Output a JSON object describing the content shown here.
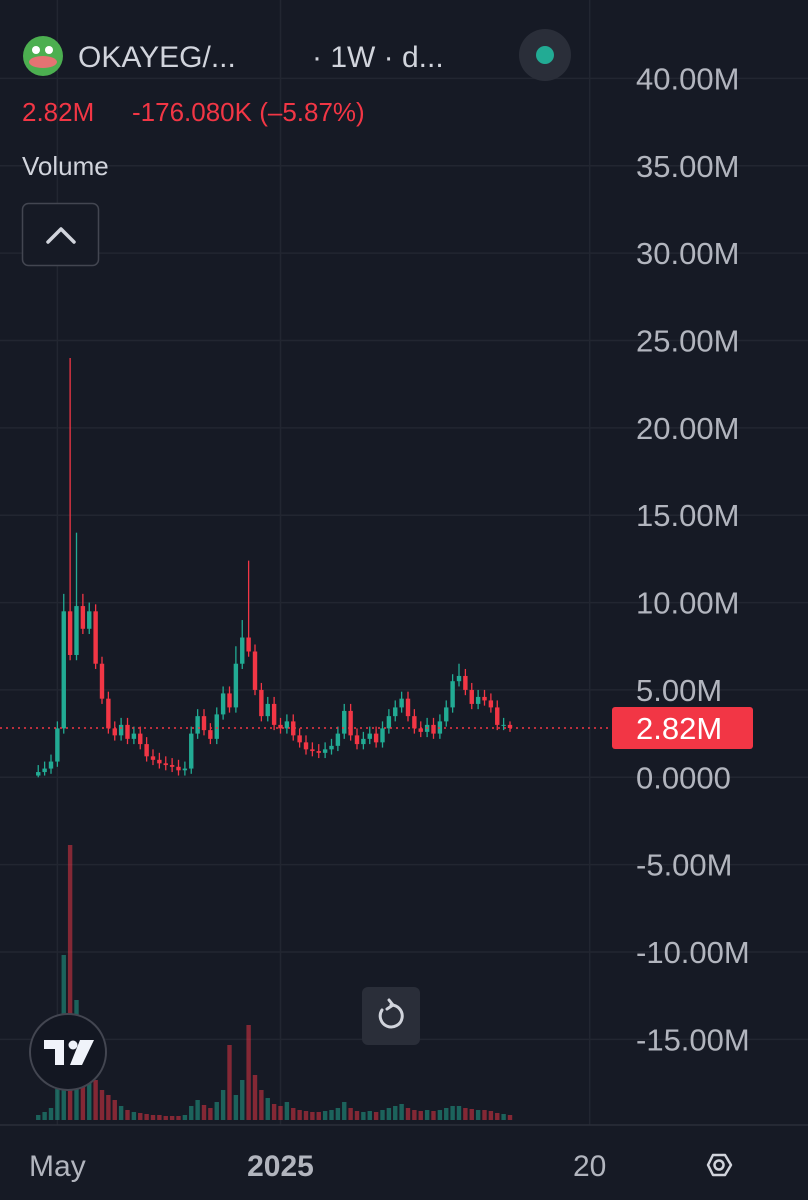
{
  "chart_data": {
    "type": "candlestick",
    "title": "OKAYEG/...",
    "interval": "· 1W · d...",
    "last_price_text": "2.82M",
    "change": "-176.080K (–5.87%)",
    "volume_label": "Volume",
    "up_color": "#22ab94",
    "down_color": "#f23645",
    "grid": true,
    "ylim": [
      -19.9,
      43.8
    ],
    "yticks": [
      {
        "value": 40,
        "label": "40.00M"
      },
      {
        "value": 35,
        "label": "35.00M"
      },
      {
        "value": 30,
        "label": "30.00M"
      },
      {
        "value": 25,
        "label": "25.00M"
      },
      {
        "value": 20,
        "label": "20.00M"
      },
      {
        "value": 15,
        "label": "15.00M"
      },
      {
        "value": 10,
        "label": "10.00M"
      },
      {
        "value": 5,
        "label": "5.00M"
      },
      {
        "value": 0,
        "label": "0.0000"
      },
      {
        "value": -5,
        "label": "-5.00M"
      },
      {
        "value": -10,
        "label": "-10.00M"
      },
      {
        "value": -15,
        "label": "-15.00M"
      }
    ],
    "xlim": [
      -6,
      90
    ],
    "xticks": [
      {
        "value": 3,
        "label": "May"
      },
      {
        "value": 38,
        "label": "2025"
      },
      {
        "value": 86.5,
        "label": "20"
      }
    ],
    "last_price": 2.82,
    "last_price_label": "2.82M",
    "open": [
      0.1,
      0.3,
      0.5,
      0.9,
      2.8,
      9.5,
      7.0,
      9.8,
      8.5,
      9.5,
      6.5,
      4.5,
      2.8,
      2.4,
      3.0,
      2.2,
      2.5,
      1.9,
      1.2,
      1.0,
      0.8,
      0.7,
      0.6,
      0.4,
      0.5,
      2.5,
      3.5,
      2.7,
      2.2,
      3.6,
      4.8,
      4.0,
      6.5,
      8.0,
      7.2,
      5.0,
      3.5,
      4.2,
      3.0,
      2.8,
      3.2,
      2.4,
      2.0,
      1.6,
      1.5,
      1.4,
      1.6,
      1.8,
      2.5,
      3.8,
      2.4,
      1.9,
      2.2,
      2.5,
      2.0,
      2.8,
      3.5,
      4.0,
      4.5,
      3.5,
      2.8,
      2.6,
      3.0,
      2.5,
      3.2,
      4.0,
      5.5,
      5.8,
      5.0,
      4.2,
      4.6,
      4.4,
      4.0,
      3.0,
      3.0
    ],
    "high": [
      0.7,
      0.9,
      1.3,
      3.2,
      10.5,
      24.0,
      14.0,
      10.5,
      10.0,
      9.9,
      6.9,
      4.9,
      3.2,
      3.4,
      3.4,
      2.9,
      2.9,
      2.3,
      1.6,
      1.4,
      1.2,
      1.1,
      1.0,
      0.9,
      2.9,
      3.9,
      3.9,
      3.1,
      4.0,
      5.2,
      5.2,
      7.5,
      9.0,
      12.4,
      7.6,
      5.4,
      4.6,
      4.6,
      3.4,
      3.6,
      3.6,
      2.8,
      2.4,
      2.0,
      1.9,
      2.0,
      2.2,
      2.9,
      4.2,
      4.2,
      2.8,
      2.6,
      2.9,
      2.9,
      3.2,
      3.9,
      4.4,
      4.9,
      4.9,
      3.9,
      3.2,
      3.4,
      3.4,
      3.6,
      4.4,
      5.9,
      6.5,
      6.2,
      5.4,
      5.0,
      5.0,
      4.8,
      4.4,
      3.4,
      3.2
    ],
    "low": [
      0.0,
      0.1,
      0.2,
      0.6,
      2.5,
      6.7,
      6.7,
      8.2,
      8.2,
      6.2,
      4.2,
      2.5,
      2.1,
      2.1,
      1.9,
      1.9,
      1.6,
      0.9,
      0.7,
      0.5,
      0.4,
      0.3,
      0.1,
      0.1,
      0.2,
      2.2,
      2.4,
      1.9,
      1.9,
      3.3,
      3.7,
      3.7,
      6.2,
      6.9,
      4.7,
      3.2,
      3.2,
      2.7,
      2.5,
      2.5,
      2.1,
      1.7,
      1.3,
      1.2,
      1.1,
      1.1,
      1.3,
      1.5,
      2.2,
      2.1,
      1.6,
      1.6,
      1.9,
      1.7,
      1.7,
      2.5,
      3.2,
      3.7,
      3.2,
      2.5,
      2.3,
      2.3,
      2.2,
      2.2,
      2.9,
      3.7,
      5.2,
      4.7,
      3.9,
      3.9,
      4.1,
      3.7,
      2.7,
      2.7,
      2.6
    ],
    "close": [
      0.3,
      0.5,
      0.9,
      2.8,
      9.5,
      7.0,
      9.8,
      8.5,
      9.5,
      6.5,
      4.5,
      2.8,
      2.4,
      3.0,
      2.2,
      2.5,
      1.9,
      1.2,
      1.0,
      0.8,
      0.7,
      0.6,
      0.4,
      0.5,
      2.5,
      3.5,
      2.7,
      2.2,
      3.6,
      4.8,
      4.0,
      6.5,
      8.0,
      7.2,
      5.0,
      3.5,
      4.2,
      3.0,
      2.8,
      3.2,
      2.4,
      2.0,
      1.6,
      1.5,
      1.4,
      1.6,
      1.8,
      2.5,
      3.8,
      2.4,
      1.9,
      2.2,
      2.5,
      2.0,
      2.8,
      3.5,
      4.0,
      4.5,
      3.5,
      2.8,
      2.6,
      3.0,
      2.5,
      3.2,
      4.0,
      5.5,
      5.8,
      5.0,
      4.2,
      4.6,
      4.4,
      4.0,
      3.0,
      3.0,
      2.82
    ],
    "volume": [
      5,
      8,
      12,
      35,
      165,
      275,
      120,
      60,
      45,
      40,
      30,
      25,
      20,
      14,
      10,
      8,
      7,
      6,
      5,
      5,
      4,
      4,
      4,
      5,
      14,
      20,
      15,
      12,
      18,
      30,
      75,
      25,
      40,
      95,
      45,
      30,
      22,
      16,
      14,
      18,
      12,
      10,
      9,
      8,
      8,
      9,
      10,
      12,
      18,
      12,
      9,
      8,
      9,
      8,
      10,
      12,
      14,
      16,
      12,
      10,
      9,
      10,
      9,
      10,
      12,
      14,
      14,
      12,
      11,
      10,
      10,
      9,
      7,
      6,
      5
    ]
  }
}
